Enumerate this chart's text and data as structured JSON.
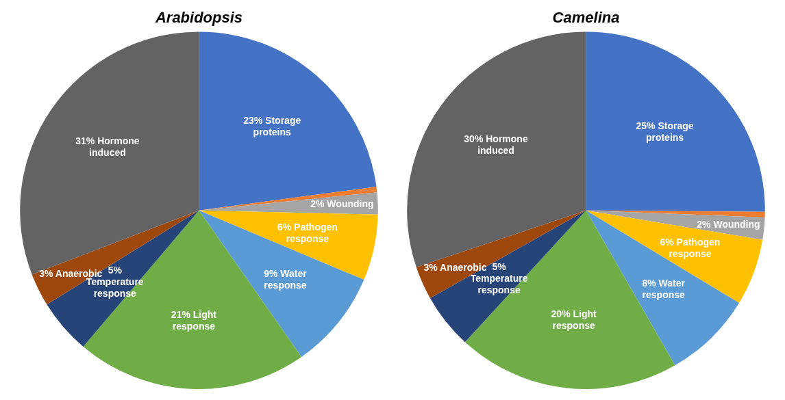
{
  "chart_data": [
    {
      "type": "pie",
      "title": "Arabidopsis",
      "categories": [
        "Storage proteins",
        null,
        "Wounding",
        "Pathogen response",
        "Water response",
        "Light response",
        "Temperature response",
        "Anaerobic",
        "Hormone induced"
      ],
      "values": [
        23,
        0.5,
        2,
        6,
        9,
        21,
        5,
        3,
        31
      ],
      "value_labels": [
        "23%",
        null,
        "2%",
        "6%",
        "9%",
        "21%",
        "5%",
        "3%",
        "31%"
      ],
      "colors": [
        "#4472c4",
        "#ed7d31",
        "#a5a5a5",
        "#ffc000",
        "#5b9bd5",
        "#70ad47",
        "#264478",
        "#9e480e",
        "#636363"
      ]
    },
    {
      "type": "pie",
      "title": "Camelina",
      "categories": [
        "Storage proteins",
        null,
        "Wounding",
        "Pathogen response",
        "Water response",
        "Light response",
        "Temperature response",
        "Anaerobic",
        "Hormone induced"
      ],
      "values": [
        25,
        0.5,
        2,
        6,
        8,
        20,
        5,
        3,
        30
      ],
      "value_labels": [
        "25%",
        null,
        "2%",
        "6%",
        "8%",
        "20%",
        "5%",
        "3%",
        "30%"
      ],
      "colors": [
        "#4472c4",
        "#ed7d31",
        "#a5a5a5",
        "#ffc000",
        "#5b9bd5",
        "#70ad47",
        "#264478",
        "#9e480e",
        "#636363"
      ]
    }
  ]
}
